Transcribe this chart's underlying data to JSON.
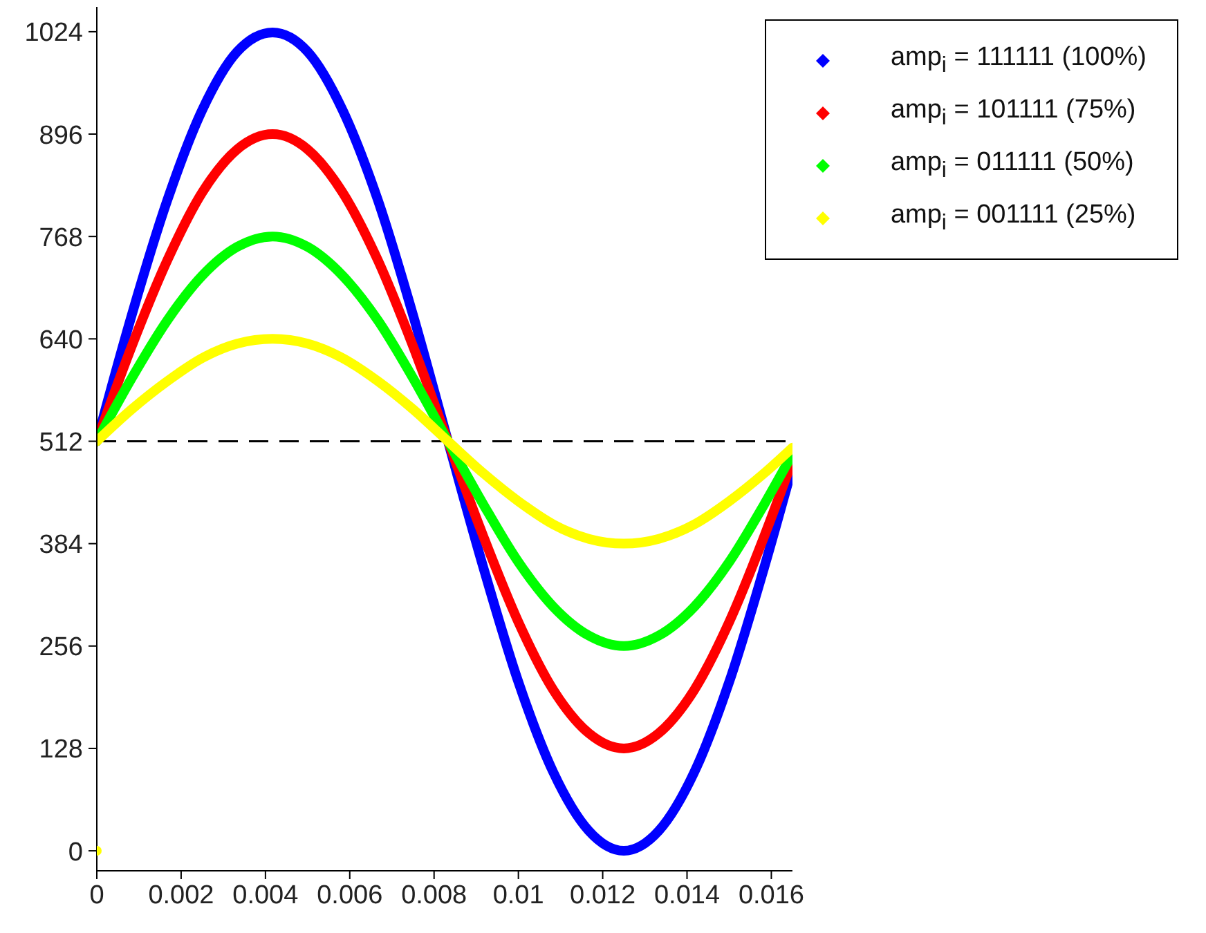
{
  "chart_data": {
    "type": "line",
    "x": [
      0,
      0.00083,
      0.00167,
      0.0025,
      0.00333,
      0.00417,
      0.005,
      0.00583,
      0.00667,
      0.0075,
      0.00833,
      0.00917,
      0.01,
      0.01083,
      0.01167,
      0.0125,
      0.01333,
      0.01417,
      0.015,
      0.01583,
      0.0165
    ],
    "series": [
      {
        "name": "amp$_{i}$ = 111111 (100%)",
        "color": "#0000ff",
        "values": [
          512,
          670,
          813,
          926,
          999,
          1023,
          999,
          926,
          813,
          670,
          512,
          354,
          211,
          98,
          25,
          0,
          25,
          98,
          211,
          354,
          480
        ]
      },
      {
        "name": "amp$_{i}$ = 101111 (75%)",
        "color": "#ff0000",
        "values": [
          512,
          631,
          738,
          823,
          877,
          896,
          877,
          823,
          738,
          631,
          512,
          393,
          286,
          201,
          147,
          128,
          147,
          201,
          286,
          393,
          488
        ]
      },
      {
        "name": "amp$_{i}$ = 011111 (50%)",
        "color": "#00ff00",
        "values": [
          512,
          591,
          663,
          719,
          755,
          768,
          755,
          719,
          663,
          591,
          512,
          433,
          361,
          305,
          269,
          256,
          269,
          305,
          361,
          433,
          496
        ]
      },
      {
        "name": "amp$_{i}$ = 001111 (25%)",
        "color": "#ffff00",
        "values": [
          512,
          552,
          587,
          616,
          634,
          640,
          634,
          616,
          587,
          552,
          512,
          472,
          437,
          408,
          390,
          384,
          390,
          408,
          437,
          472,
          504
        ]
      },
      {
        "type": "scatter",
        "color": "#ffff00",
        "x": [
          0
        ],
        "values": [
          0
        ]
      }
    ],
    "xlim": [
      0,
      0.0165
    ],
    "xticks": [
      0,
      0.002,
      0.004,
      0.006,
      0.008,
      0.01,
      0.012,
      0.014,
      0.016
    ],
    "ylim": [
      -25,
      1055
    ],
    "yticks": [
      0,
      128,
      256,
      384,
      512,
      640,
      768,
      896,
      1024
    ],
    "ref_lines": [
      {
        "axis": "y",
        "value": 512,
        "color": "#000000",
        "line_style": "dashed"
      }
    ],
    "grid": false,
    "legend": "top right"
  }
}
